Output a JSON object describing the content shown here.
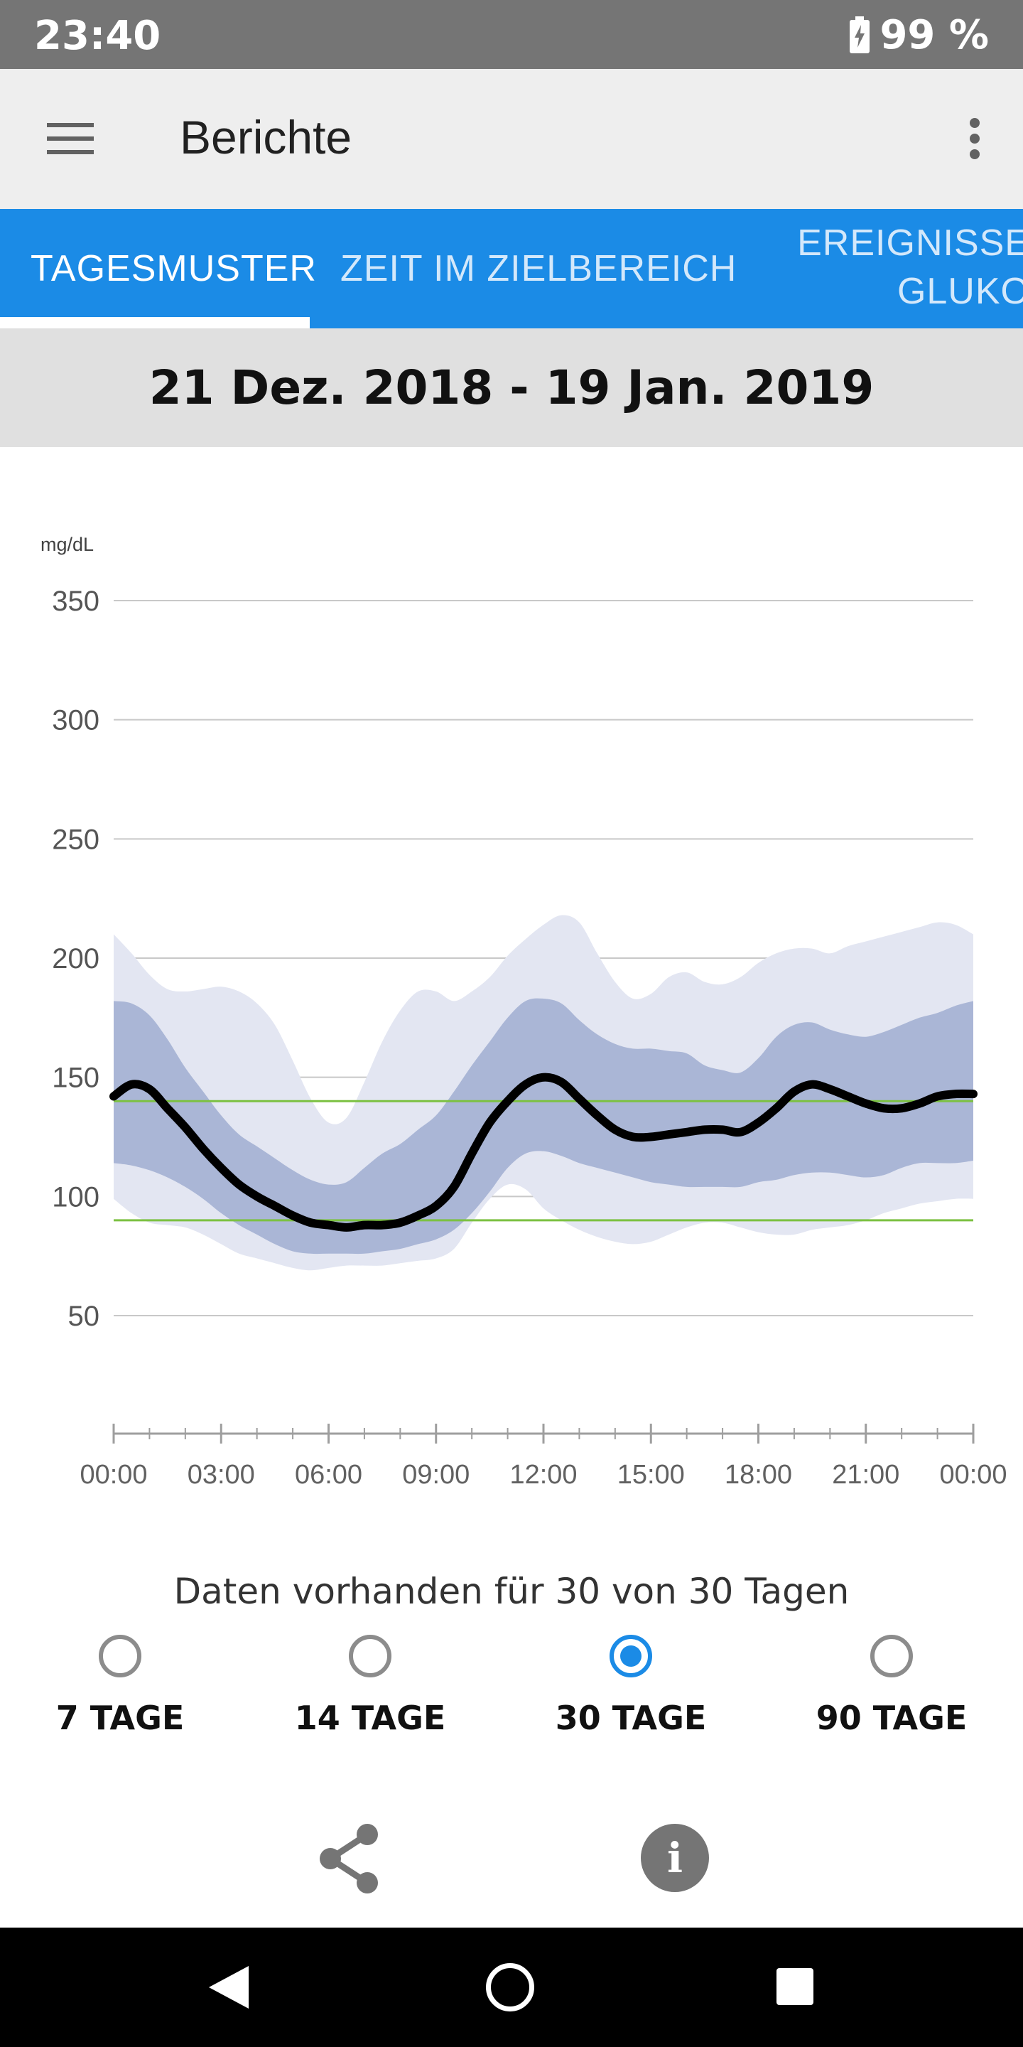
{
  "status_bar": {
    "time": "23:40",
    "battery": "99 %",
    "battery_icon": "battery-charging-icon"
  },
  "app_bar": {
    "title": "Berichte",
    "menu_icon": "hamburger-menu-icon",
    "more_icon": "more-vert-icon"
  },
  "tabs": [
    {
      "label": "TAGESMUSTER",
      "active": true
    },
    {
      "label": "ZEIT IM ZIELBEREICH",
      "active": false
    },
    {
      "label_line1": "EREIGNISSE",
      "label_line2": "GLUKO",
      "active": false
    }
  ],
  "date_range": "21 Dez. 2018 - 19 Jan. 2019",
  "chart_data": {
    "type": "area",
    "unit_label": "mg/dL",
    "y_ticks": [
      50,
      100,
      150,
      200,
      250,
      300,
      350
    ],
    "ylim": [
      0,
      350
    ],
    "x_ticks": [
      "00:00",
      "03:00",
      "06:00",
      "09:00",
      "12:00",
      "15:00",
      "18:00",
      "21:00",
      "00:00"
    ],
    "xlim_hours": [
      0,
      24
    ],
    "target_range": {
      "low": 90,
      "high": 140,
      "color": "#7cc142"
    },
    "grid": true,
    "colors": {
      "outer_band": "#e3e6f2",
      "inner_band": "#aab6d6",
      "median": "#000000"
    },
    "x_hours": [
      0,
      0.5,
      1,
      1.5,
      2,
      2.5,
      3,
      3.5,
      4,
      4.5,
      5,
      5.5,
      6,
      6.5,
      7,
      7.5,
      8,
      8.5,
      9,
      9.5,
      10,
      10.5,
      11,
      11.5,
      12,
      12.5,
      13,
      13.5,
      14,
      14.5,
      15,
      15.5,
      16,
      16.5,
      17,
      17.5,
      18,
      18.5,
      19,
      19.5,
      20,
      20.5,
      21,
      21.5,
      22,
      22.5,
      23,
      23.5,
      24
    ],
    "series": [
      {
        "name": "p90",
        "values": [
          210,
          202,
          193,
          187,
          186,
          187,
          188,
          186,
          181,
          172,
          157,
          141,
          131,
          133,
          148,
          165,
          178,
          186,
          186,
          182,
          186,
          192,
          201,
          208,
          214,
          218,
          215,
          202,
          190,
          183,
          185,
          192,
          194,
          190,
          189,
          192,
          198,
          202,
          204,
          204,
          202,
          205,
          207,
          209,
          211,
          213,
          215,
          214,
          210
        ]
      },
      {
        "name": "p75",
        "values": [
          182,
          181,
          176,
          166,
          154,
          144,
          134,
          126,
          121,
          116,
          111,
          107,
          105,
          106,
          112,
          118,
          122,
          128,
          134,
          144,
          155,
          165,
          175,
          182,
          183,
          181,
          174,
          168,
          164,
          162,
          162,
          161,
          160,
          155,
          153,
          152,
          158,
          167,
          172,
          173,
          170,
          168,
          167,
          169,
          172,
          175,
          177,
          180,
          182
        ]
      },
      {
        "name": "median",
        "values": [
          142,
          147,
          145,
          137,
          129,
          120,
          112,
          105,
          100,
          96,
          92,
          89,
          88,
          87,
          88,
          88,
          89,
          92,
          96,
          104,
          118,
          131,
          140,
          147,
          150,
          148,
          141,
          134,
          128,
          125,
          125,
          126,
          127,
          128,
          128,
          127,
          131,
          137,
          144,
          147,
          145,
          142,
          139,
          137,
          137,
          139,
          142,
          143,
          143
        ]
      },
      {
        "name": "p25",
        "values": [
          114,
          113,
          111,
          108,
          104,
          99,
          93,
          88,
          84,
          80,
          77,
          76,
          76,
          76,
          76,
          77,
          78,
          80,
          82,
          86,
          93,
          102,
          112,
          118,
          119,
          117,
          114,
          112,
          110,
          108,
          106,
          105,
          104,
          104,
          104,
          104,
          106,
          107,
          109,
          110,
          110,
          109,
          108,
          109,
          112,
          114,
          114,
          114,
          115
        ]
      },
      {
        "name": "p10",
        "values": [
          99,
          93,
          89,
          88,
          87,
          84,
          80,
          76,
          74,
          72,
          70,
          69,
          70,
          71,
          71,
          71,
          72,
          73,
          74,
          78,
          89,
          99,
          105,
          103,
          95,
          90,
          86,
          83,
          81,
          80,
          81,
          84,
          87,
          89,
          89,
          87,
          85,
          84,
          84,
          86,
          87,
          88,
          90,
          93,
          95,
          97,
          98,
          99,
          99
        ]
      }
    ]
  },
  "availability_text": "Daten vorhanden für 30 von 30 Tagen",
  "range_options": [
    {
      "label": "7 TAGE",
      "selected": false
    },
    {
      "label": "14 TAGE",
      "selected": false
    },
    {
      "label": "30 TAGE",
      "selected": true
    },
    {
      "label": "90 TAGE",
      "selected": false
    }
  ],
  "actions": {
    "share_icon": "share-icon",
    "info_icon": "info-icon",
    "info_glyph": "i"
  },
  "nav_bar": {
    "back_icon": "back-triangle-icon",
    "home_icon": "home-circle-icon",
    "recents_icon": "recents-square-icon"
  }
}
